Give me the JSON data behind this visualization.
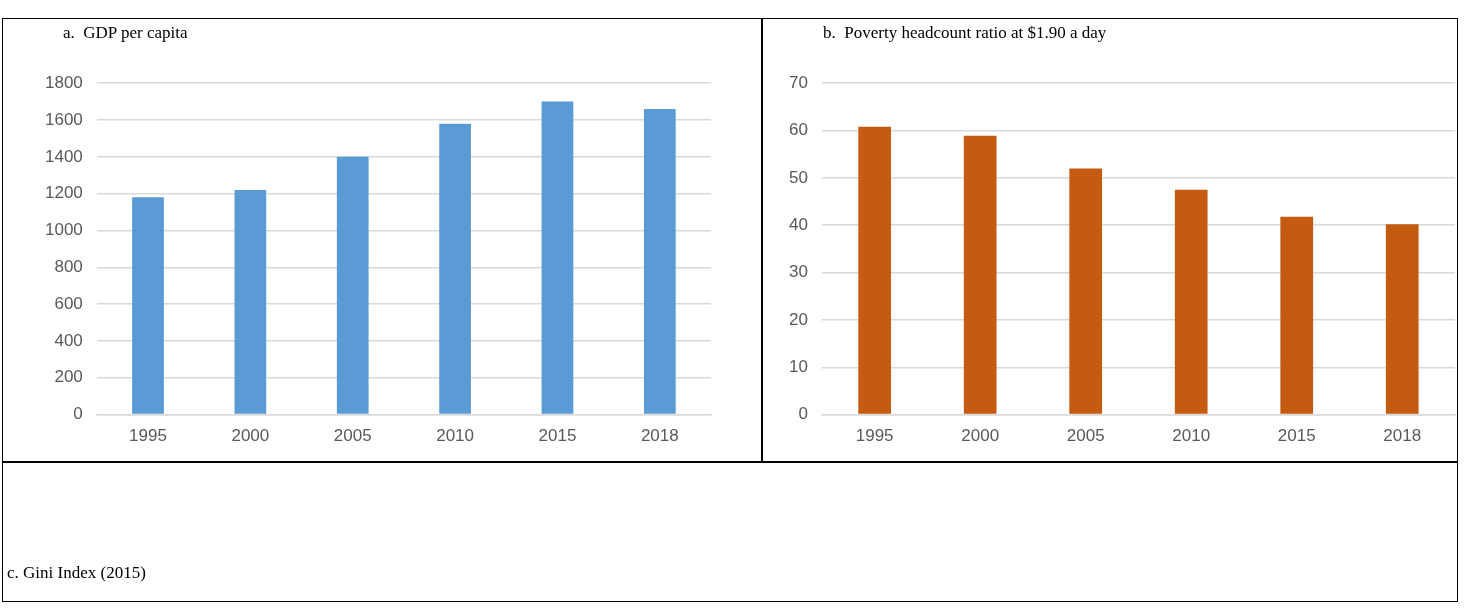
{
  "chart_data": [
    {
      "type": "bar",
      "title": "a.  GDP per capita",
      "categories": [
        "1995",
        "2000",
        "2005",
        "2010",
        "2015",
        "2018"
      ],
      "values": [
        1180,
        1220,
        1400,
        1580,
        1700,
        1660
      ],
      "color": "#5b9bd5",
      "ylim": [
        0,
        1800
      ],
      "yticks": [
        0,
        200,
        400,
        600,
        800,
        1000,
        1200,
        1400,
        1600,
        1800
      ],
      "grid": "y"
    },
    {
      "type": "bar",
      "title": "b.  Poverty headcount ratio at $1.90 a day",
      "categories": [
        "1995",
        "2000",
        "2005",
        "2010",
        "2015",
        "2018"
      ],
      "values": [
        60.8,
        58.9,
        52,
        47.5,
        41.8,
        40.2
      ],
      "color": "#c55a11",
      "ylim": [
        0,
        70
      ],
      "yticks": [
        0,
        10,
        20,
        30,
        40,
        50,
        60,
        70
      ],
      "grid": "y"
    },
    {
      "type": "other",
      "title": "c. Gini Index (2015)"
    }
  ]
}
